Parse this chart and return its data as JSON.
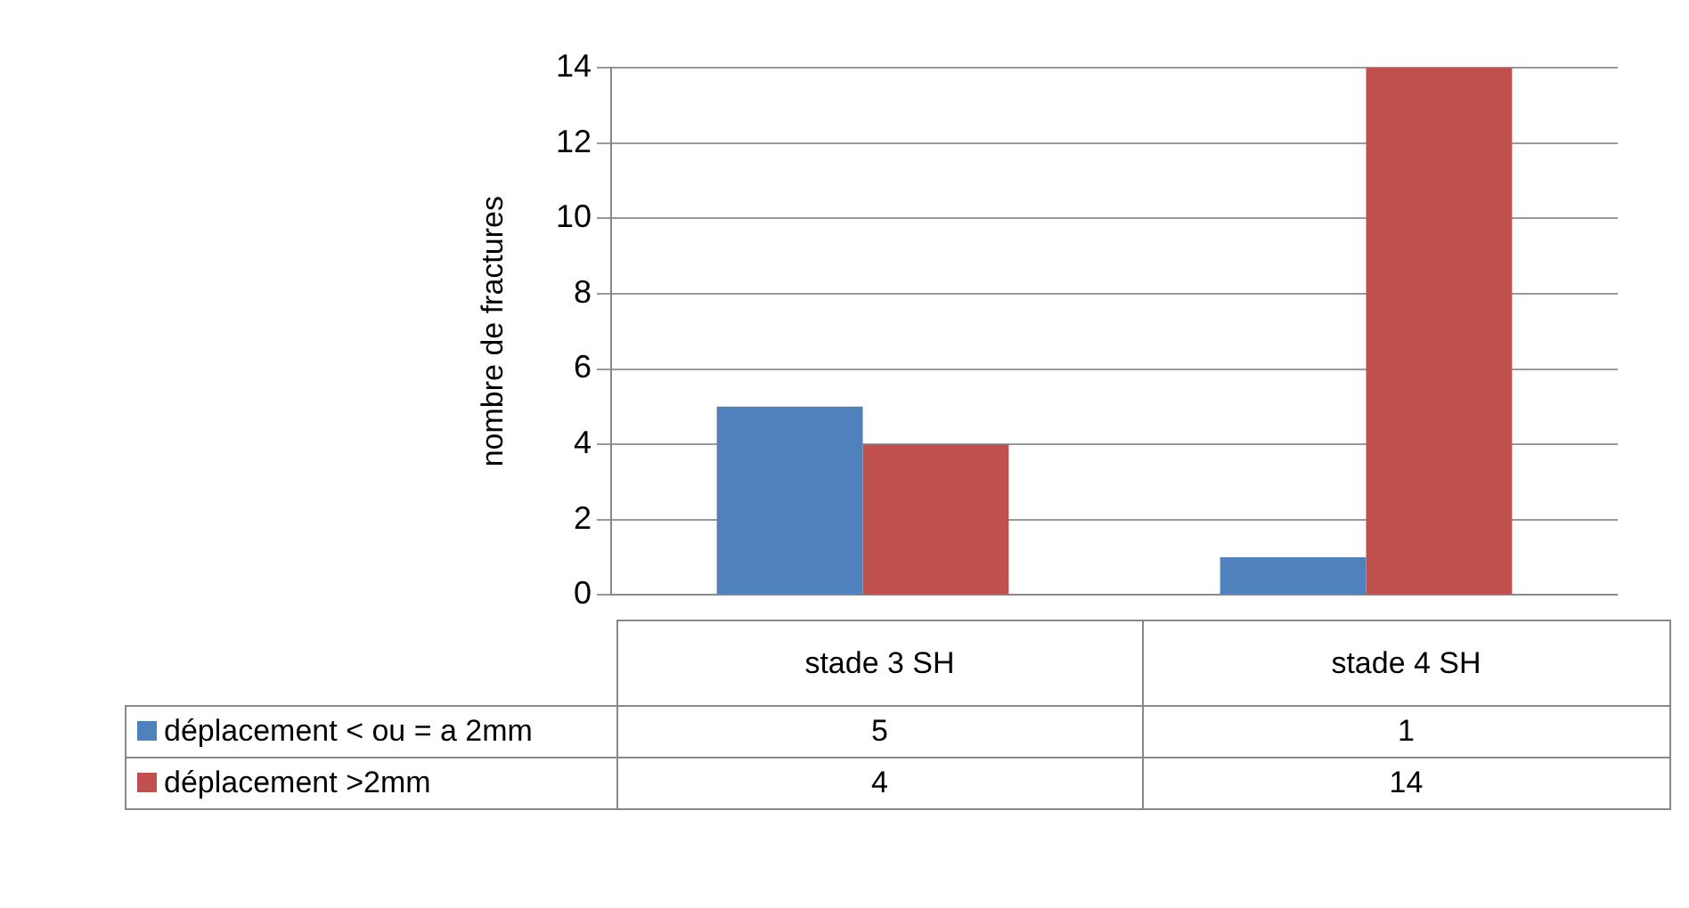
{
  "chart_data": {
    "type": "bar",
    "ylabel": "nombre de fractures",
    "categories": [
      "stade 3 SH",
      "stade 4 SH"
    ],
    "series": [
      {
        "name": "déplacement < ou = a 2mm",
        "color": "#4f81bd",
        "values": [
          5,
          1
        ]
      },
      {
        "name": "déplacement >2mm",
        "color": "#c0504d",
        "values": [
          4,
          14
        ]
      }
    ],
    "ylim": [
      0,
      14
    ],
    "yticks": [
      0,
      2,
      4,
      6,
      8,
      10,
      12,
      14
    ],
    "grid": "y",
    "legend": "bottom",
    "data_labels": true
  }
}
